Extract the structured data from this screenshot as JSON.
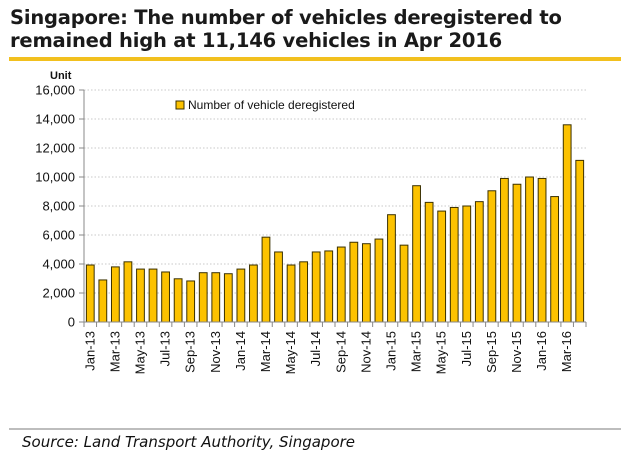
{
  "title": "Singapore: The number of vehicles deregistered to remained high at 11,146 vehicles in Apr 2016",
  "title_lines": [
    "Singapore: The number of vehicles deregistered to",
    "remained high at 11,146 vehicles in Apr 2016"
  ],
  "source": "Source: Land Transport Authority, Singapore",
  "colors": {
    "bar": "#fcc200",
    "bar_edge": "#3a3000",
    "accent_rule": "#f2c01e",
    "gridline": "#c8c8c8"
  },
  "chart_data": {
    "type": "bar",
    "title": "Singapore: The number of vehicles deregistered to remained high at 11,146 vehicles in Apr 2016",
    "ylabel": "Unit",
    "xlabel": "",
    "ylim": [
      0,
      16000
    ],
    "yticks": [
      0,
      2000,
      4000,
      6000,
      8000,
      10000,
      12000,
      14000,
      16000
    ],
    "ytick_labels": [
      "0",
      "2,000",
      "4,000",
      "6,000",
      "8,000",
      "10,000",
      "12,000",
      "14,000",
      "16,000"
    ],
    "grid": true,
    "legend": {
      "entries": [
        "Number of vehicle deregistered"
      ],
      "placement": "top-left"
    },
    "categories": [
      "Jan-13",
      "Feb-13",
      "Mar-13",
      "Apr-13",
      "May-13",
      "Jun-13",
      "Jul-13",
      "Aug-13",
      "Sep-13",
      "Oct-13",
      "Nov-13",
      "Dec-13",
      "Jan-14",
      "Feb-14",
      "Mar-14",
      "Apr-14",
      "May-14",
      "Jun-14",
      "Jul-14",
      "Aug-14",
      "Sep-14",
      "Oct-14",
      "Nov-14",
      "Dec-14",
      "Jan-15",
      "Feb-15",
      "Mar-15",
      "Apr-15",
      "May-15",
      "Jun-15",
      "Jul-15",
      "Aug-15",
      "Sep-15",
      "Oct-15",
      "Nov-15",
      "Dec-15",
      "Jan-16",
      "Feb-16",
      "Mar-16",
      "Apr-16"
    ],
    "xtick_labels_shown": [
      "Jan-13",
      "Mar-13",
      "May-13",
      "Jul-13",
      "Sep-13",
      "Nov-13",
      "Jan-14",
      "Mar-14",
      "May-14",
      "Jul-14",
      "Sep-14",
      "Nov-14",
      "Jan-15",
      "Mar-15",
      "May-15",
      "Jul-15",
      "Sep-15",
      "Nov-15",
      "Jan-16",
      "Mar-16"
    ],
    "series": [
      {
        "name": "Number of vehicle deregistered",
        "values": [
          3930,
          2900,
          3800,
          4150,
          3650,
          3650,
          3450,
          2980,
          2830,
          3400,
          3400,
          3330,
          3650,
          3930,
          5850,
          4830,
          3930,
          4150,
          4830,
          4900,
          5170,
          5500,
          5400,
          5720,
          7400,
          5300,
          9400,
          8250,
          7650,
          7900,
          8000,
          8300,
          9050,
          9900,
          9500,
          10000,
          9900,
          8650,
          13600,
          11146
        ]
      }
    ]
  }
}
